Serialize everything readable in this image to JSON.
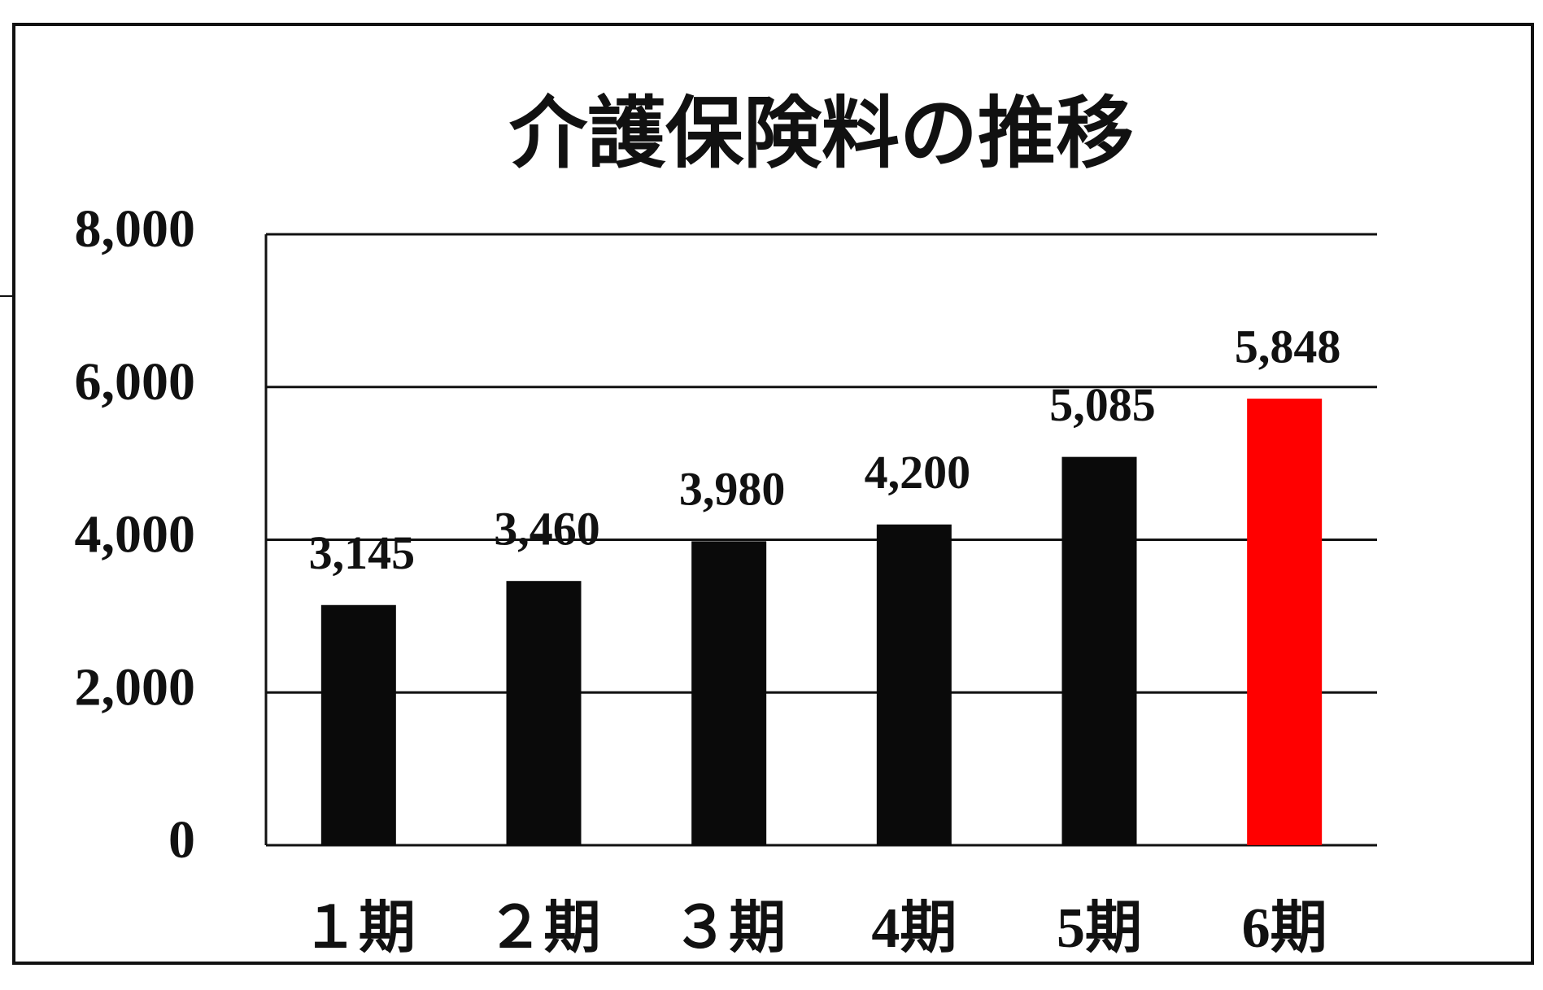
{
  "chart_data": {
    "type": "bar",
    "title": "介護保険料の推移",
    "categories": [
      "１期",
      "２期",
      "３期",
      "4期",
      "5期",
      "6期"
    ],
    "values": [
      3145,
      3460,
      3980,
      4200,
      5085,
      5848
    ],
    "value_labels": [
      "3,145",
      "3,460",
      "3,980",
      "4,200",
      "5,085",
      "5,848"
    ],
    "colors": [
      "#0a0a0a",
      "#0a0a0a",
      "#0a0a0a",
      "#0a0a0a",
      "#0a0a0a",
      "#ff0000"
    ],
    "ylim": [
      0,
      8000
    ],
    "yticks": [
      0,
      {
        "value": 2000,
        "label": "2,000"
      },
      {
        "value": 4000,
        "label": "4,000"
      },
      {
        "value": 6000,
        "label": "6,000"
      },
      {
        "value": 8000,
        "label": "8,000"
      }
    ],
    "grid": true
  }
}
